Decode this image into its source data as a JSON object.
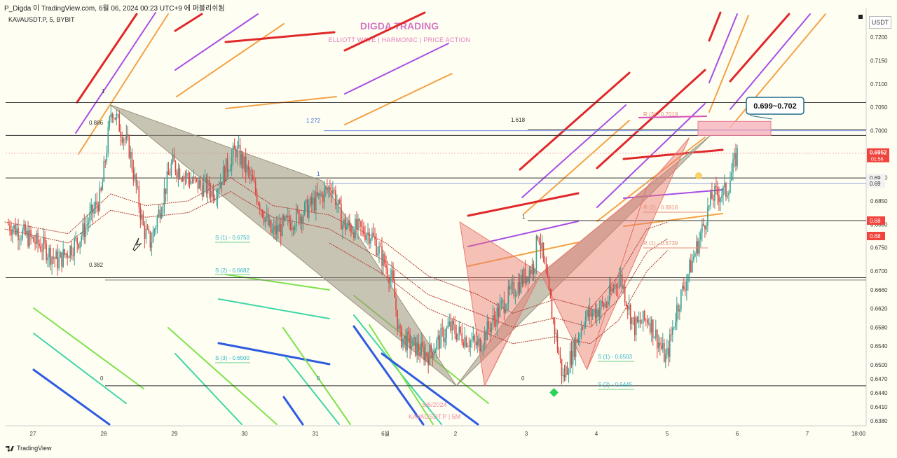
{
  "header": {
    "caption": "P_Digda 이 TradingView.com, 6월 06, 2024 00:23 UTC+9 에 퍼블리쉬됨",
    "symbol": "KAVAUSDT.P, 5, BYBIT",
    "brand_title": "DIGDA TRADING",
    "brand_subtitle": "ELLIOTT WAVE  |  HARMONIC  |  PRICE ACTION",
    "currency": "USDT"
  },
  "footer": {
    "logo_text": "TradingView"
  },
  "colors": {
    "background": "#fffef3",
    "red": "#e0282b",
    "purple": "#a74ee6",
    "orange": "#f3a245",
    "green": "#7ee24a",
    "teal": "#3fd6a6",
    "blue": "#2e5be0",
    "harmonic_gray": "#9a937f",
    "harmonic_pink": "#e9776e",
    "price_badge": "#f0443c"
  },
  "chart_data": {
    "type": "candlestick",
    "y_ticks": [
      "0.7200",
      "0.7150",
      "0.7100",
      "0.7050",
      "0.7000",
      "0.6950",
      "0.6900",
      "0.6850",
      "0.6800",
      "0.6750",
      "0.6700",
      "0.6660",
      "0.6620",
      "0.6580",
      "0.6540",
      "0.6500",
      "0.6470",
      "0.6440",
      "0.6410",
      "0.6380"
    ],
    "x_ticks": [
      "27",
      "28",
      "29",
      "30",
      "31",
      "6월",
      "2",
      "3",
      "4",
      "5",
      "6",
      "7",
      "18:00"
    ],
    "ylim": [
      0.637,
      0.7235
    ],
    "current_price": {
      "value": "0.6952",
      "countdown": "01:56"
    },
    "right_badges": [
      {
        "label": "0.69",
        "value": 0.6899,
        "style": "light"
      },
      {
        "label": "0.69",
        "value": 0.6887,
        "style": "light"
      },
      {
        "label": "0.68",
        "value": 0.6808,
        "style": "red"
      },
      {
        "label": "0.68",
        "value": 0.6775,
        "style": "red"
      }
    ],
    "target_box": {
      "label": "0.699~0.702"
    },
    "fib_labels": {
      "one_top": "1",
      "f0886": "0.886",
      "f1272": "1.272",
      "f1618": "1.618",
      "f0382": "0.382",
      "zero_left": "0",
      "zero_mid": "0",
      "zero_right": "0",
      "one_mid": "1",
      "one_right": "1"
    },
    "levels": {
      "r3": "R (3) - 0.7019",
      "r2": "R (2) - 0.6816",
      "r1": "R (1) - 0.6739",
      "s1_left": "S (1) - 0.6750",
      "s2_left": "S (2) - 0.6682",
      "s3_left": "S (3) - 0.6500",
      "s1_right": "S (1) - 0.6503",
      "s2_right": "S (2) - 0.6445"
    },
    "watermark": {
      "date": "5/6/2024",
      "symbol": "KAVAUSDT.P | 5M"
    },
    "harmonic_patterns": [
      {
        "name": "bearish-gray",
        "points": [
          [
            28.1,
            0.7055
          ],
          [
            31.1,
            0.6893
          ],
          [
            33.0,
            0.6455
          ],
          [
            34.2,
            0.6695
          ],
          [
            36.6,
            0.699
          ]
        ]
      },
      {
        "name": "pink-left",
        "points": [
          [
            33.05,
            0.6805
          ],
          [
            33.4,
            0.6455
          ],
          [
            34.2,
            0.6695
          ]
        ]
      },
      {
        "name": "pink-right",
        "points": [
          [
            34.2,
            0.6695
          ],
          [
            35.7,
            0.688
          ],
          [
            34.85,
            0.649
          ],
          [
            36.3,
            0.6985
          ]
        ]
      }
    ]
  }
}
